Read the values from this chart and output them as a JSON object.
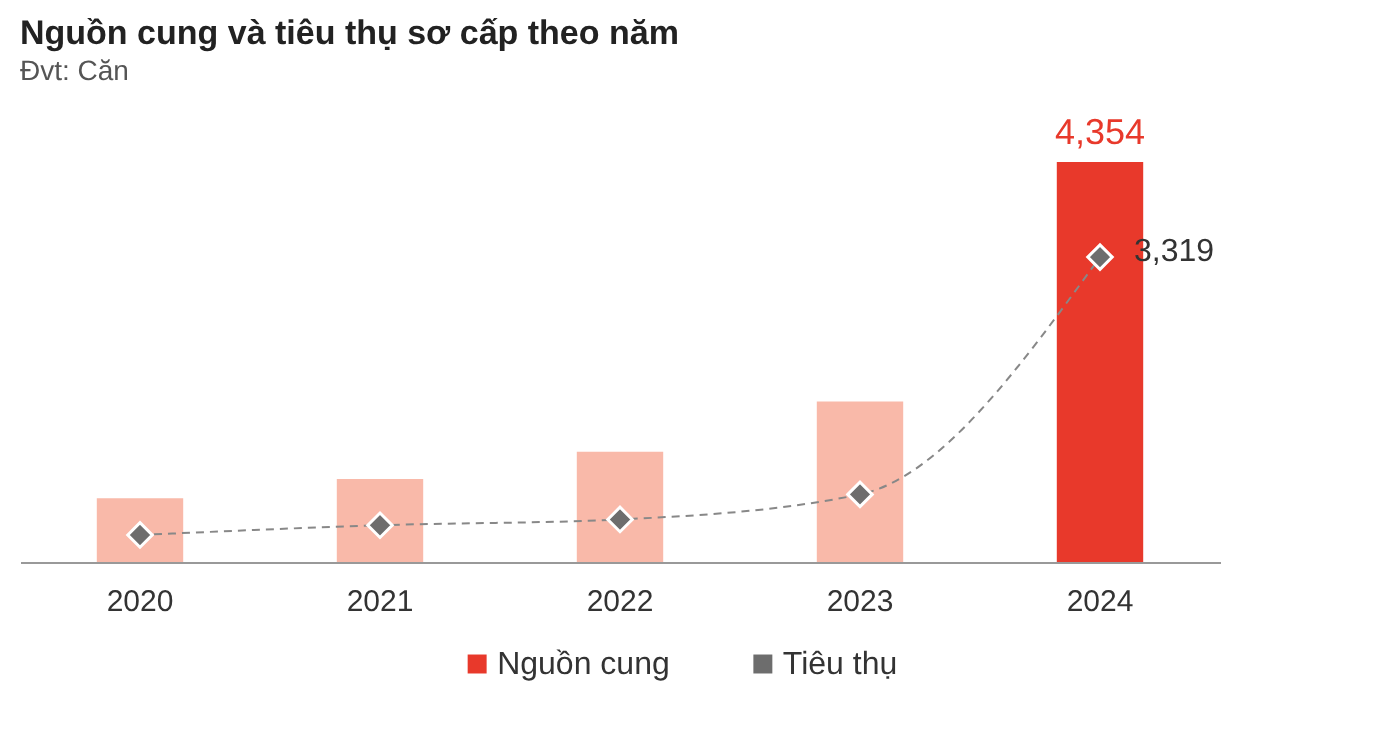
{
  "chart_data": {
    "type": "bar",
    "title": "Nguồn cung và tiêu thụ sơ cấp theo năm",
    "subtitle": "Đvt: Căn",
    "categories": [
      "2020",
      "2021",
      "2022",
      "2023",
      "2024"
    ],
    "series": [
      {
        "name": "Nguồn cung",
        "color": "#e8392b",
        "colors": [
          "#f9b9a9",
          "#f9b9a9",
          "#f9b9a9",
          "#f9b9a9",
          "#e8392b"
        ],
        "values": [
          694,
          904,
          1199,
          1746,
          4354
        ],
        "value_labels": [
          null,
          null,
          null,
          null,
          "4,354"
        ]
      },
      {
        "name": "Tiêu thụ",
        "type": "line",
        "color": "#6d6d6d",
        "marker": "diamond",
        "line_style": "dashed",
        "values": [
          294,
          400,
          463,
          736,
          3319
        ],
        "value_labels": [
          null,
          null,
          null,
          null,
          "3,319"
        ]
      }
    ],
    "tick_labels": "x",
    "grid": false,
    "legend": "bottom"
  }
}
